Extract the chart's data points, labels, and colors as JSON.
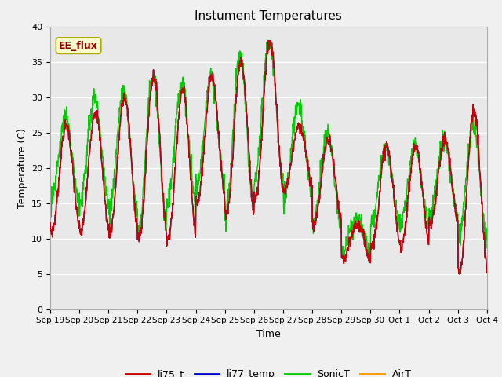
{
  "title": "Instument Temperatures",
  "xlabel": "Time",
  "ylabel": "Temperature (C)",
  "ylim": [
    0,
    40
  ],
  "annotation": "EE_flux",
  "annotation_color": "#8B0000",
  "annotation_bg": "#FFFFCC",
  "bg_color": "#E8E8E8",
  "grid_color": "#FFFFFF",
  "series_colors": {
    "li75_t": "#CC0000",
    "li77_temp": "#0000CC",
    "SonicT": "#00CC00",
    "AirT": "#FF9900"
  },
  "xtick_labels": [
    "Sep 19",
    "Sep 20",
    "Sep 21",
    "Sep 22",
    "Sep 23",
    "Sep 24",
    "Sep 25",
    "Sep 26",
    "Sep 27",
    "Sep 28",
    "Sep 29",
    "Sep 30",
    "Oct 1",
    "Oct 2",
    "Oct 3",
    "Oct 4"
  ],
  "line_width": 1.0
}
